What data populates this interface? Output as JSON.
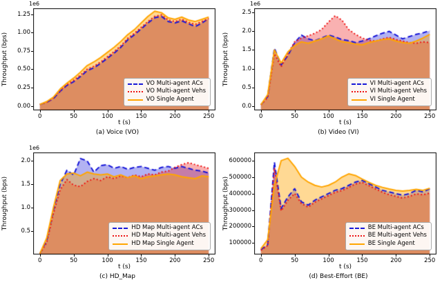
{
  "figure": {
    "xlabel": "t (s)",
    "ylabel": "Throughput (bps)"
  },
  "chart_data": [
    {
      "type": "line",
      "caption": "(a) Voice (VO)",
      "xlabel": "t (s)",
      "ylabel": "Throughput (bps)",
      "offset_text": "1e6",
      "xlim": [
        -10,
        260
      ],
      "ylim": [
        -0.06,
        1.33
      ],
      "xticks": [
        0,
        50,
        100,
        150,
        200,
        250
      ],
      "yticks": [
        0,
        0.25,
        0.5,
        0.75,
        1.0,
        1.25
      ],
      "ytick_labels": [
        "0.00",
        "0.25",
        "0.50",
        "0.75",
        "1.00",
        "1.25"
      ],
      "x": [
        0,
        10,
        20,
        30,
        40,
        50,
        60,
        70,
        80,
        90,
        100,
        110,
        120,
        130,
        140,
        150,
        160,
        170,
        180,
        190,
        200,
        210,
        220,
        230,
        240,
        250
      ],
      "series": [
        {
          "label": "VO Multi-agent ACs",
          "color": "#1515d8",
          "dash": "dashed",
          "values": [
            0.02,
            0.05,
            0.1,
            0.2,
            0.28,
            0.33,
            0.4,
            0.48,
            0.52,
            0.58,
            0.65,
            0.72,
            0.8,
            0.9,
            0.97,
            1.05,
            1.13,
            1.2,
            1.22,
            1.15,
            1.13,
            1.16,
            1.12,
            1.08,
            1.13,
            1.19
          ]
        },
        {
          "label": "VO Multi-agent Vehs",
          "color": "#ee1111",
          "dash": "dotted",
          "values": [
            0.02,
            0.05,
            0.11,
            0.21,
            0.29,
            0.35,
            0.42,
            0.5,
            0.54,
            0.6,
            0.67,
            0.74,
            0.82,
            0.92,
            0.99,
            1.07,
            1.15,
            1.22,
            1.24,
            1.17,
            1.15,
            1.18,
            1.14,
            1.11,
            1.15,
            1.19
          ]
        },
        {
          "label": "VO Single Agent",
          "color": "#ffa500",
          "dash": "solid",
          "values": [
            0.02,
            0.06,
            0.12,
            0.23,
            0.31,
            0.38,
            0.46,
            0.55,
            0.6,
            0.66,
            0.73,
            0.8,
            0.88,
            0.97,
            1.04,
            1.13,
            1.22,
            1.29,
            1.27,
            1.2,
            1.18,
            1.21,
            1.17,
            1.15,
            1.18,
            1.21
          ]
        }
      ]
    },
    {
      "type": "line",
      "caption": "(b) Video (VI)",
      "xlabel": "t (s)",
      "ylabel": "Throughput (bps)",
      "offset_text": "1e6",
      "xlim": [
        -10,
        260
      ],
      "ylim": [
        -0.12,
        2.62
      ],
      "xticks": [
        0,
        50,
        100,
        150,
        200,
        250
      ],
      "yticks": [
        0,
        0.5,
        1.0,
        1.5,
        2.0,
        2.5
      ],
      "ytick_labels": [
        "0.0",
        "0.5",
        "1.0",
        "1.5",
        "2.0",
        "2.5"
      ],
      "x": [
        0,
        10,
        20,
        30,
        40,
        50,
        60,
        70,
        80,
        90,
        100,
        110,
        120,
        130,
        140,
        150,
        160,
        170,
        180,
        190,
        200,
        210,
        220,
        230,
        240,
        250
      ],
      "series": [
        {
          "label": "VI Multi-agent ACs",
          "color": "#1515d8",
          "dash": "dashed",
          "values": [
            0.03,
            0.25,
            1.55,
            1.1,
            1.35,
            1.7,
            1.9,
            1.8,
            1.75,
            1.82,
            1.9,
            1.85,
            1.78,
            1.75,
            1.7,
            1.74,
            1.8,
            1.88,
            1.95,
            2.0,
            1.9,
            1.8,
            1.86,
            1.92,
            1.96,
            2.02
          ]
        },
        {
          "label": "VI Multi-agent Vehs",
          "color": "#ee1111",
          "dash": "dotted",
          "values": [
            0.03,
            0.22,
            1.4,
            1.05,
            1.4,
            1.72,
            1.82,
            1.88,
            1.95,
            2.05,
            2.25,
            2.42,
            2.3,
            2.05,
            1.92,
            1.82,
            1.76,
            1.74,
            1.8,
            1.84,
            1.78,
            1.74,
            1.7,
            1.68,
            1.72,
            1.7
          ]
        },
        {
          "label": "VI Single Agent",
          "color": "#ffa500",
          "dash": "solid",
          "values": [
            0.03,
            0.3,
            1.5,
            1.15,
            1.45,
            1.62,
            1.72,
            1.68,
            1.74,
            1.8,
            1.88,
            1.8,
            1.72,
            1.7,
            1.66,
            1.64,
            1.7,
            1.74,
            1.78,
            1.8,
            1.74,
            1.7,
            1.68,
            1.74,
            1.82,
            1.92
          ]
        }
      ]
    },
    {
      "type": "line",
      "caption": "(c) HD_Map",
      "xlabel": "t (s)",
      "ylabel": "Throughput (bps)",
      "offset_text": "1e6",
      "xlim": [
        -10,
        260
      ],
      "ylim": [
        0,
        2.18
      ],
      "xticks": [
        0,
        50,
        100,
        150,
        200,
        250
      ],
      "yticks": [
        0.5,
        1.0,
        1.5,
        2.0
      ],
      "ytick_labels": [
        "0.5",
        "1.0",
        "1.5",
        "2.0"
      ],
      "x": [
        0,
        10,
        20,
        30,
        40,
        50,
        60,
        70,
        80,
        90,
        100,
        110,
        120,
        130,
        140,
        150,
        160,
        170,
        180,
        190,
        200,
        210,
        220,
        230,
        240,
        250
      ],
      "series": [
        {
          "label": "HD Map Multi-agent ACs",
          "color": "#1515d8",
          "dash": "dashed",
          "values": [
            0.02,
            0.3,
            0.95,
            1.5,
            1.8,
            1.7,
            2.05,
            2.0,
            1.76,
            1.9,
            1.92,
            1.84,
            1.88,
            1.82,
            1.86,
            1.88,
            1.84,
            1.8,
            1.86,
            1.88,
            1.84,
            1.88,
            1.84,
            1.8,
            1.78,
            1.74
          ]
        },
        {
          "label": "HD Map Multi-agent Vehs",
          "color": "#ee1111",
          "dash": "dotted",
          "values": [
            0.02,
            0.25,
            0.88,
            1.38,
            1.6,
            1.48,
            1.45,
            1.56,
            1.62,
            1.58,
            1.66,
            1.62,
            1.68,
            1.64,
            1.7,
            1.66,
            1.72,
            1.7,
            1.76,
            1.78,
            1.86,
            1.92,
            1.96,
            1.92,
            1.88,
            1.84
          ]
        },
        {
          "label": "HD Map Single Agent",
          "color": "#ffa500",
          "dash": "solid",
          "values": [
            0.02,
            0.35,
            1.0,
            1.58,
            1.72,
            1.74,
            1.68,
            1.76,
            1.72,
            1.7,
            1.72,
            1.66,
            1.7,
            1.64,
            1.68,
            1.62,
            1.66,
            1.68,
            1.7,
            1.72,
            1.7,
            1.66,
            1.64,
            1.62,
            1.68,
            1.66
          ]
        }
      ]
    },
    {
      "type": "line",
      "caption": "(d) Best-Effort (BE)",
      "xlabel": "t (s)",
      "ylabel": "Throughput (bps)",
      "offset_text": "",
      "xlim": [
        -10,
        260
      ],
      "ylim": [
        30000,
        650000
      ],
      "xticks": [
        0,
        50,
        100,
        150,
        200,
        250
      ],
      "yticks": [
        100000,
        200000,
        300000,
        400000,
        500000,
        600000
      ],
      "ytick_labels": [
        "100000",
        "200000",
        "300000",
        "400000",
        "500000",
        "600000"
      ],
      "x": [
        0,
        10,
        20,
        30,
        40,
        50,
        60,
        70,
        80,
        90,
        100,
        110,
        120,
        130,
        140,
        150,
        160,
        170,
        180,
        190,
        200,
        210,
        220,
        230,
        240,
        250
      ],
      "series": [
        {
          "label": "BE Multi-agent ACs",
          "color": "#1515d8",
          "dash": "dashed",
          "values": [
            60000,
            90000,
            590000,
            310000,
            380000,
            430000,
            350000,
            330000,
            360000,
            380000,
            400000,
            420000,
            430000,
            450000,
            470000,
            480000,
            460000,
            440000,
            420000,
            410000,
            400000,
            390000,
            400000,
            420000,
            410000,
            430000
          ]
        },
        {
          "label": "BE Multi-agent Vehs",
          "color": "#ee1111",
          "dash": "dotted",
          "values": [
            55000,
            85000,
            555000,
            295000,
            360000,
            400000,
            340000,
            318000,
            348000,
            368000,
            388000,
            408000,
            418000,
            438000,
            458000,
            468000,
            448000,
            428000,
            408000,
            393000,
            383000,
            373000,
            383000,
            398000,
            393000,
            403000
          ]
        },
        {
          "label": "BE Single Agent",
          "color": "#ffa500",
          "dash": "solid",
          "values": [
            65000,
            120000,
            450000,
            600000,
            615000,
            565000,
            500000,
            470000,
            450000,
            440000,
            450000,
            470000,
            500000,
            520000,
            510000,
            488000,
            468000,
            450000,
            438000,
            428000,
            420000,
            415000,
            420000,
            426000,
            420000,
            432000
          ]
        }
      ]
    }
  ]
}
